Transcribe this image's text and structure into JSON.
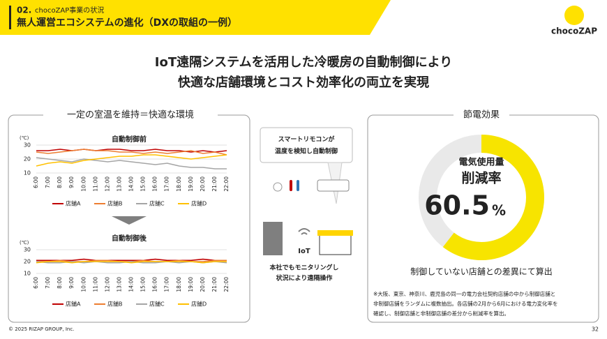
{
  "header": {
    "number": "02.",
    "section": "chocoZAP事業の状況",
    "title": "無人運営エコシステムの進化（DXの取組の一例）",
    "logo": "chocoZAP"
  },
  "headline": [
    "IoT遠隔システムを活用した冷暖房の自動制御により",
    "快適な店舗環境とコスト効率化の両立を実現"
  ],
  "left_panel": {
    "title": "一定の室温を維持＝快適な環境"
  },
  "chart_data": [
    {
      "type": "line",
      "title": "自動制御前",
      "y_unit": "(℃)",
      "categories": [
        "6:00",
        "7:00",
        "8:00",
        "9:00",
        "10:00",
        "11:00",
        "12:00",
        "13:00",
        "14:00",
        "15:00",
        "16:00",
        "17:00",
        "18:00",
        "19:00",
        "20:00",
        "21:00",
        "22:00"
      ],
      "ylim": [
        10,
        30
      ],
      "yticks": [
        10,
        20,
        30
      ],
      "grid": true,
      "series": [
        {
          "name": "店舗A",
          "color": "#c00000",
          "values": [
            26,
            26,
            27,
            26,
            27,
            26,
            27,
            27,
            26,
            26,
            27,
            26,
            26,
            25,
            26,
            25,
            26
          ]
        },
        {
          "name": "店舗B",
          "color": "#ed7d31",
          "values": [
            25,
            24,
            25,
            26,
            27,
            26,
            26,
            25,
            25,
            24,
            25,
            24,
            25,
            26,
            24,
            25,
            23
          ]
        },
        {
          "name": "店舗C",
          "color": "#a5a5a5",
          "values": [
            21,
            20,
            19,
            18,
            20,
            19,
            18,
            19,
            18,
            17,
            16,
            17,
            15,
            14,
            14,
            13,
            13
          ]
        },
        {
          "name": "店舗D",
          "color": "#ffc000",
          "values": [
            15,
            17,
            18,
            17,
            19,
            20,
            21,
            22,
            22,
            23,
            23,
            22,
            21,
            20,
            21,
            22,
            23
          ]
        }
      ]
    },
    {
      "type": "line",
      "title": "自動制御後",
      "y_unit": "(℃)",
      "categories": [
        "6:00",
        "7:00",
        "8:00",
        "9:00",
        "10:00",
        "11:00",
        "12:00",
        "13:00",
        "14:00",
        "15:00",
        "16:00",
        "17:00",
        "18:00",
        "19:00",
        "20:00",
        "21:00",
        "22:00"
      ],
      "ylim": [
        10,
        30
      ],
      "yticks": [
        10,
        20,
        30
      ],
      "grid": true,
      "series": [
        {
          "name": "店舗A",
          "color": "#c00000",
          "values": [
            21,
            21,
            21,
            21,
            22,
            21,
            21,
            21,
            21,
            21,
            22,
            21,
            21,
            21,
            22,
            21,
            21
          ]
        },
        {
          "name": "店舗B",
          "color": "#ed7d31",
          "values": [
            20,
            20,
            21,
            20,
            20,
            21,
            21,
            20,
            20,
            21,
            20,
            20,
            21,
            20,
            20,
            21,
            21
          ]
        },
        {
          "name": "店舗C",
          "color": "#a5a5a5",
          "values": [
            20,
            19,
            19,
            20,
            19,
            20,
            19,
            19,
            20,
            19,
            19,
            20,
            19,
            20,
            19,
            20,
            19
          ]
        },
        {
          "name": "店舗D",
          "color": "#ffc000",
          "values": [
            19,
            20,
            20,
            19,
            20,
            20,
            20,
            20,
            19,
            20,
            20,
            20,
            20,
            20,
            19,
            20,
            20
          ]
        }
      ]
    },
    {
      "type": "donut",
      "title": "節電効果",
      "label_lines": [
        "電気使用量",
        "削減率"
      ],
      "values": [
        60.5
      ],
      "unit": "%",
      "color": "#f7e400",
      "track_color": "#e9e9e9"
    }
  ],
  "center": {
    "bubble": [
      "スマートリモコンが",
      "温度を検知し自動制御"
    ],
    "iot": "IoT",
    "caption": [
      "本社でもモニタリングし",
      "状況により遠隔操作"
    ]
  },
  "right_panel": {
    "caption": "制御していない店舗との差異にて算出",
    "note": [
      "※大阪、東京、神奈川、鹿児島の同一の電力会社契約店舗の中から制御店舗と",
      "非制御店舗をランダムに複数抽出。各店舗の2月から6月における電力変化率を",
      "確認し、制御店舗と非制御店舗の差分から削減率を算出。"
    ]
  },
  "footer": {
    "copyright": "© 2025 RIZAP GROUP, Inc.",
    "page": "32"
  }
}
